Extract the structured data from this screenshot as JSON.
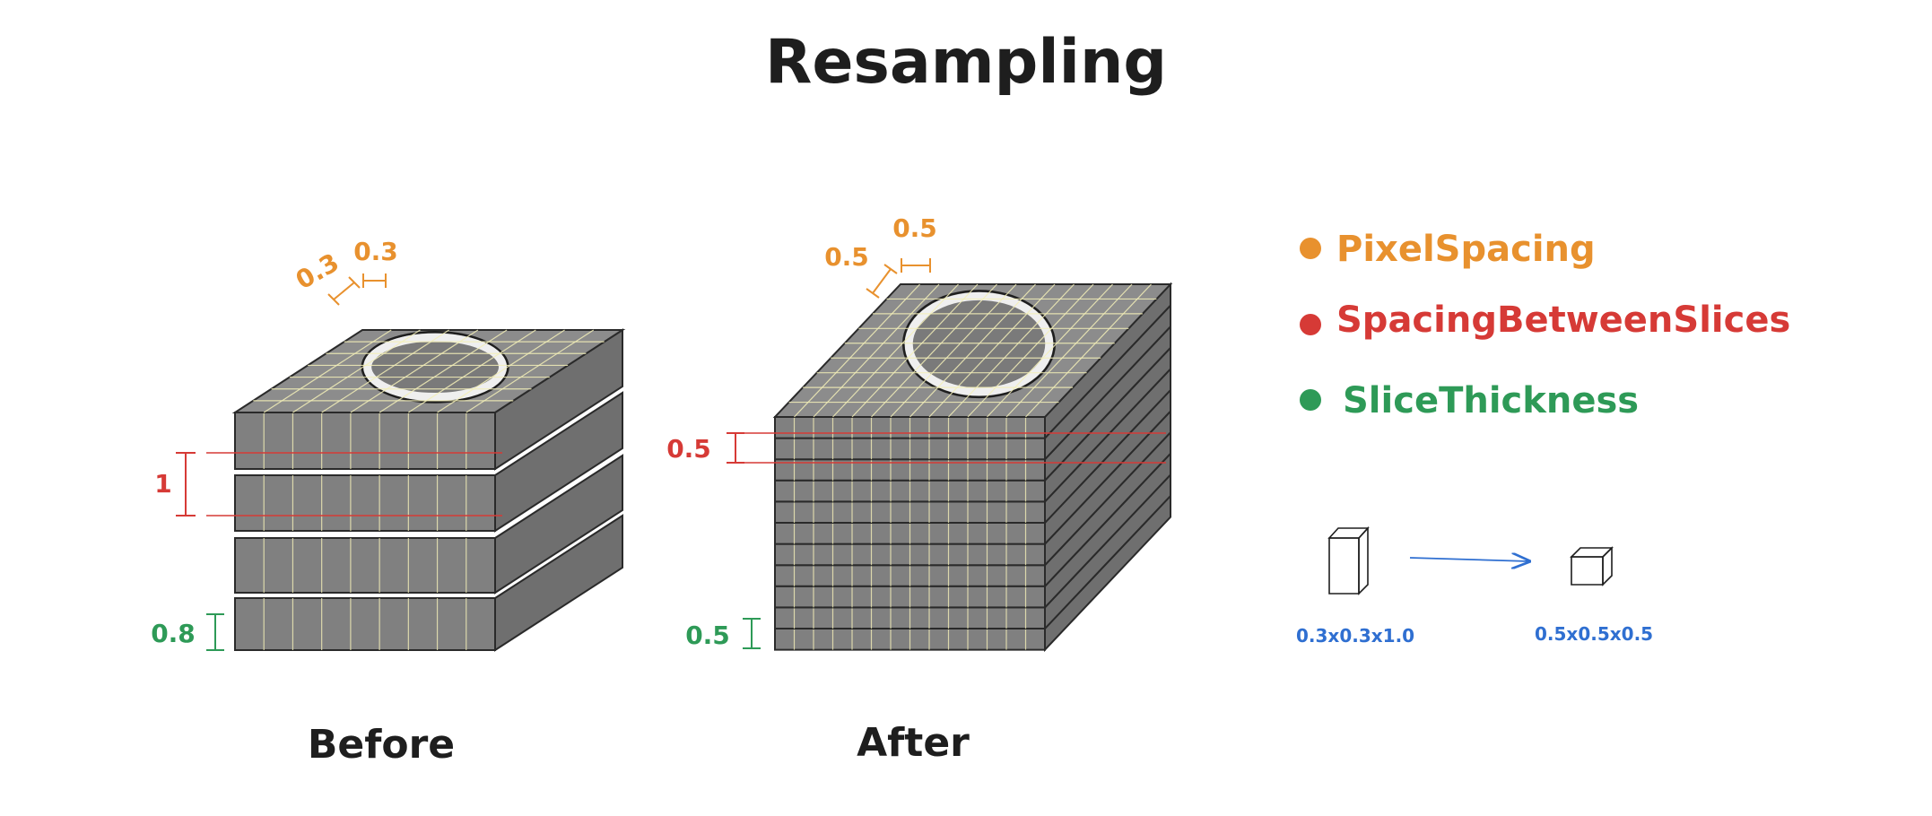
{
  "title": "Resampling",
  "colors": {
    "pixel_spacing": "#e8912e",
    "spacing_between_slices": "#d63a36",
    "slice_thickness": "#2e9a57",
    "voxel": "#2f6fd1",
    "slab_top": "#8c8c8c",
    "slab_front": "#808080",
    "slab_side": "#6f6f6f",
    "grid": "#f3efb8"
  },
  "before": {
    "caption": "Before",
    "pixel_spacing_x": "0.3",
    "pixel_spacing_y": "0.3",
    "spacing_between_slices": "1",
    "slice_thickness": "0.8"
  },
  "after": {
    "caption": "After",
    "pixel_spacing_x": "0.5",
    "pixel_spacing_y": "0.5",
    "spacing_between_slices": "0.5",
    "slice_thickness": "0.5"
  },
  "legend": {
    "items": [
      {
        "label": "PixelSpacing",
        "color": "#e8912e"
      },
      {
        "label": "SpacingBetweenSlices",
        "color": "#d63a36"
      },
      {
        "label": "SliceThickness",
        "color": "#2e9a57"
      }
    ]
  },
  "voxel": {
    "before_label": "0.3x0.3x1.0",
    "after_label": "0.5x0.5x0.5"
  }
}
